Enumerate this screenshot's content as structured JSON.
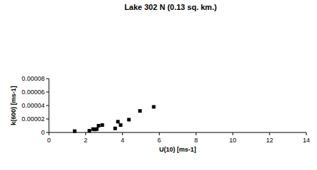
{
  "chart_data": {
    "type": "scatter",
    "title": "Lake 302 N (0.13 sq. km.)",
    "x_label": "U(10) [ms-1]",
    "y_label": "k(600) [ms-1]",
    "x": [
      1.4,
      2.2,
      2.4,
      2.5,
      2.6,
      2.7,
      2.9,
      3.6,
      3.75,
      3.9,
      4.35,
      4.95,
      5.7
    ],
    "values": [
      2e-06,
      2.5e-06,
      5e-06,
      4.5e-06,
      5e-06,
      1e-05,
      1.1e-05,
      6e-06,
      1.6e-05,
      1.1e-05,
      1.9e-05,
      3.2e-05,
      3.8e-05
    ],
    "color": "#000000",
    "marker": "square",
    "xlim": [
      0,
      14
    ],
    "xticks": [
      0,
      2,
      4,
      6,
      8,
      10,
      12,
      14
    ],
    "ylim": [
      0,
      8e-05
    ],
    "yticks": [
      0,
      {
        "value": 2e-05,
        "label": "0.00002"
      },
      {
        "value": 4e-05,
        "label": "0.00004"
      },
      {
        "value": 6e-05,
        "label": "0.00006"
      },
      {
        "value": 8e-05,
        "label": "0.00008"
      }
    ],
    "grid": false
  }
}
